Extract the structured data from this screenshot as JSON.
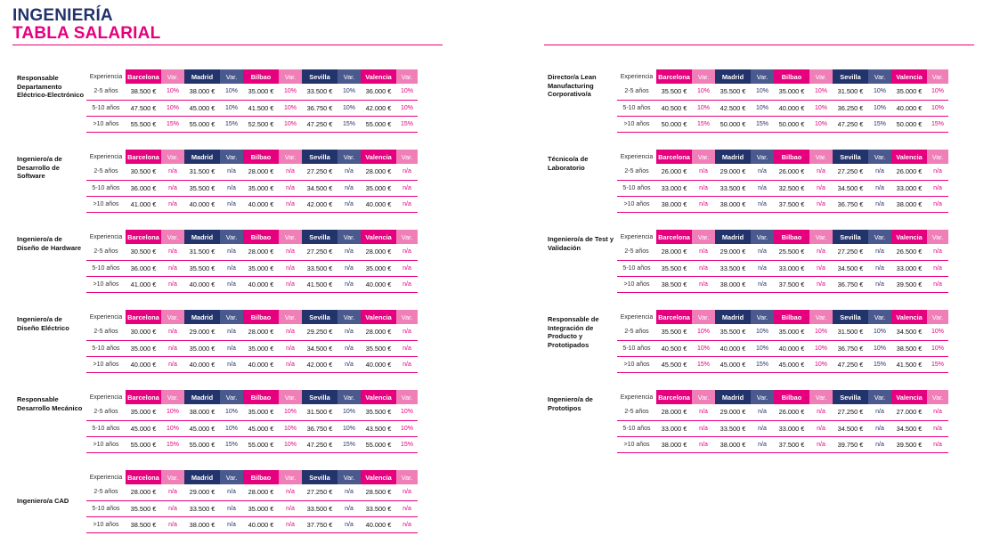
{
  "header": {
    "title_line1": "INGENIERÍA",
    "title_line2": "TABLA SALARIAL"
  },
  "columns": {
    "experience": "Experiencia",
    "cities": [
      "Barcelona",
      "Madrid",
      "Bilbao",
      "Sevilla",
      "Valencia"
    ],
    "var": "Var."
  },
  "left": [
    {
      "role": "Responsable Departamento Eléctrico-Electrónico",
      "rows": [
        {
          "exp": "2-5 años",
          "cells": [
            [
              "38.500 €",
              "10%"
            ],
            [
              "38.000 €",
              "10%"
            ],
            [
              "35.000 €",
              "10%"
            ],
            [
              "33.500 €",
              "10%"
            ],
            [
              "36.000 €",
              "10%"
            ]
          ]
        },
        {
          "exp": "5-10 años",
          "cells": [
            [
              "47.500 €",
              "10%"
            ],
            [
              "45.000 €",
              "10%"
            ],
            [
              "41.500 €",
              "10%"
            ],
            [
              "36.750 €",
              "10%"
            ],
            [
              "42.000 €",
              "10%"
            ]
          ]
        },
        {
          "exp": ">10 años",
          "cells": [
            [
              "55.500 €",
              "15%"
            ],
            [
              "55.000 €",
              "15%"
            ],
            [
              "52.500 €",
              "10%"
            ],
            [
              "47.250 €",
              "15%"
            ],
            [
              "55.000 €",
              "15%"
            ]
          ]
        }
      ]
    },
    {
      "role": "Ingeniero/a de Desarrollo de Software",
      "rows": [
        {
          "exp": "2-5 años",
          "cells": [
            [
              "30.500 €",
              "n/a"
            ],
            [
              "31.500 €",
              "n/a"
            ],
            [
              "28.000 €",
              "n/a"
            ],
            [
              "27.250 €",
              "n/a"
            ],
            [
              "28.000 €",
              "n/a"
            ]
          ]
        },
        {
          "exp": "5-10 años",
          "cells": [
            [
              "36.000 €",
              "n/a"
            ],
            [
              "35.500 €",
              "n/a"
            ],
            [
              "35.000 €",
              "n/a"
            ],
            [
              "34.500 €",
              "n/a"
            ],
            [
              "35.000 €",
              "n/a"
            ]
          ]
        },
        {
          "exp": ">10 años",
          "cells": [
            [
              "41.000 €",
              "n/a"
            ],
            [
              "40.000 €",
              "n/a"
            ],
            [
              "40.000 €",
              "n/a"
            ],
            [
              "42.000 €",
              "n/a"
            ],
            [
              "40.000 €",
              "n/a"
            ]
          ]
        }
      ]
    },
    {
      "role": "Ingeniero/a de Diseño de Hardware",
      "rows": [
        {
          "exp": "2-5 años",
          "cells": [
            [
              "30.500 €",
              "n/a"
            ],
            [
              "31.500 €",
              "n/a"
            ],
            [
              "28.000 €",
              "n/a"
            ],
            [
              "27.250 €",
              "n/a"
            ],
            [
              "28.000 €",
              "n/a"
            ]
          ]
        },
        {
          "exp": "5-10 años",
          "cells": [
            [
              "36.000 €",
              "n/a"
            ],
            [
              "35.500 €",
              "n/a"
            ],
            [
              "35.000 €",
              "n/a"
            ],
            [
              "33.500 €",
              "n/a"
            ],
            [
              "35.000 €",
              "n/a"
            ]
          ]
        },
        {
          "exp": ">10 años",
          "cells": [
            [
              "41.000 €",
              "n/a"
            ],
            [
              "40.000 €",
              "n/a"
            ],
            [
              "40.000 €",
              "n/a"
            ],
            [
              "41.500 €",
              "n/a"
            ],
            [
              "40.000 €",
              "n/a"
            ]
          ]
        }
      ]
    },
    {
      "role": "Ingeniero/a de Diseño Eléctrico",
      "rows": [
        {
          "exp": "2-5 años",
          "cells": [
            [
              "30.000 €",
              "n/a"
            ],
            [
              "29.000 €",
              "n/a"
            ],
            [
              "28.000 €",
              "n/a"
            ],
            [
              "29.250 €",
              "n/a"
            ],
            [
              "28.000 €",
              "n/a"
            ]
          ]
        },
        {
          "exp": "5-10 años",
          "cells": [
            [
              "35.000 €",
              "n/a"
            ],
            [
              "35.000 €",
              "n/a"
            ],
            [
              "35.000 €",
              "n/a"
            ],
            [
              "34.500 €",
              "n/a"
            ],
            [
              "35.500 €",
              "n/a"
            ]
          ]
        },
        {
          "exp": ">10 años",
          "cells": [
            [
              "40.000 €",
              "n/a"
            ],
            [
              "40.000 €",
              "n/a"
            ],
            [
              "40.000 €",
              "n/a"
            ],
            [
              "42.000 €",
              "n/a"
            ],
            [
              "40.000 €",
              "n/a"
            ]
          ]
        }
      ]
    },
    {
      "role": "Responsable Desarrollo Mecánico",
      "rows": [
        {
          "exp": "2-5 años",
          "cells": [
            [
              "35.000 €",
              "10%"
            ],
            [
              "38.000 €",
              "10%"
            ],
            [
              "35.000 €",
              "10%"
            ],
            [
              "31.500 €",
              "10%"
            ],
            [
              "35.500 €",
              "10%"
            ]
          ]
        },
        {
          "exp": "5-10 años",
          "cells": [
            [
              "45.000 €",
              "10%"
            ],
            [
              "45.000 €",
              "10%"
            ],
            [
              "45.000 €",
              "10%"
            ],
            [
              "36.750 €",
              "10%"
            ],
            [
              "43.500 €",
              "10%"
            ]
          ]
        },
        {
          "exp": ">10 años",
          "cells": [
            [
              "55.000 €",
              "15%"
            ],
            [
              "55.000 €",
              "15%"
            ],
            [
              "55.000 €",
              "10%"
            ],
            [
              "47.250 €",
              "15%"
            ],
            [
              "55.000 €",
              "15%"
            ]
          ]
        }
      ]
    },
    {
      "role": "Ingeniero/a CAD",
      "rows": [
        {
          "exp": "2-5 años",
          "cells": [
            [
              "28.000 €",
              "n/a"
            ],
            [
              "29.000 €",
              "n/a"
            ],
            [
              "28.000 €",
              "n/a"
            ],
            [
              "27.250 €",
              "n/a"
            ],
            [
              "28.500 €",
              "n/a"
            ]
          ]
        },
        {
          "exp": "5-10 años",
          "cells": [
            [
              "35.500 €",
              "n/a"
            ],
            [
              "33.500 €",
              "n/a"
            ],
            [
              "35.000 €",
              "n/a"
            ],
            [
              "33.500 €",
              "n/a"
            ],
            [
              "33.500 €",
              "n/a"
            ]
          ]
        },
        {
          "exp": ">10 años",
          "cells": [
            [
              "38.500 €",
              "n/a"
            ],
            [
              "38.000 €",
              "n/a"
            ],
            [
              "40.000 €",
              "n/a"
            ],
            [
              "37.750 €",
              "n/a"
            ],
            [
              "40.000 €",
              "n/a"
            ]
          ]
        }
      ]
    }
  ],
  "right": [
    {
      "role": "Director/a Lean Manufacturing Corporativo/a",
      "rows": [
        {
          "exp": "2-5 años",
          "cells": [
            [
              "35.500 €",
              "10%"
            ],
            [
              "35.500 €",
              "10%"
            ],
            [
              "35.000 €",
              "10%"
            ],
            [
              "31.500 €",
              "10%"
            ],
            [
              "35.000 €",
              "10%"
            ]
          ]
        },
        {
          "exp": "5-10 años",
          "cells": [
            [
              "40.500 €",
              "10%"
            ],
            [
              "42.500 €",
              "10%"
            ],
            [
              "40.000 €",
              "10%"
            ],
            [
              "36.250 €",
              "10%"
            ],
            [
              "40.000 €",
              "10%"
            ]
          ]
        },
        {
          "exp": ">10 años",
          "cells": [
            [
              "50.000 €",
              "15%"
            ],
            [
              "50.000 €",
              "15%"
            ],
            [
              "50.000 €",
              "10%"
            ],
            [
              "47.250 €",
              "15%"
            ],
            [
              "50.000 €",
              "15%"
            ]
          ]
        }
      ]
    },
    {
      "role": "Técnico/a de Laboratorio",
      "rows": [
        {
          "exp": "2-5 años",
          "cells": [
            [
              "26.000 €",
              "n/a"
            ],
            [
              "29.000 €",
              "n/a"
            ],
            [
              "26.000 €",
              "n/a"
            ],
            [
              "27.250 €",
              "n/a"
            ],
            [
              "26.000 €",
              "n/a"
            ]
          ]
        },
        {
          "exp": "5-10 años",
          "cells": [
            [
              "33.000 €",
              "n/a"
            ],
            [
              "33.500 €",
              "n/a"
            ],
            [
              "32.500 €",
              "n/a"
            ],
            [
              "34.500 €",
              "n/a"
            ],
            [
              "33.000 €",
              "n/a"
            ]
          ]
        },
        {
          "exp": ">10 años",
          "cells": [
            [
              "38.000 €",
              "n/a"
            ],
            [
              "38.000 €",
              "n/a"
            ],
            [
              "37.500 €",
              "n/a"
            ],
            [
              "36.750 €",
              "n/a"
            ],
            [
              "38.000 €",
              "n/a"
            ]
          ]
        }
      ]
    },
    {
      "role": "Ingeniero/a de Test y Validación",
      "rows": [
        {
          "exp": "2-5 años",
          "cells": [
            [
              "28.000 €",
              "n/a"
            ],
            [
              "29.000 €",
              "n/a"
            ],
            [
              "25.500 €",
              "n/a"
            ],
            [
              "27.250 €",
              "n/a"
            ],
            [
              "26.500 €",
              "n/a"
            ]
          ]
        },
        {
          "exp": "5-10 años",
          "cells": [
            [
              "35.500 €",
              "n/a"
            ],
            [
              "33.500 €",
              "n/a"
            ],
            [
              "33.000 €",
              "n/a"
            ],
            [
              "34.500 €",
              "n/a"
            ],
            [
              "33.000 €",
              "n/a"
            ]
          ]
        },
        {
          "exp": ">10 años",
          "cells": [
            [
              "38.500 €",
              "n/a"
            ],
            [
              "38.000 €",
              "n/a"
            ],
            [
              "37.500 €",
              "n/a"
            ],
            [
              "36.750 €",
              "n/a"
            ],
            [
              "39.500 €",
              "n/a"
            ]
          ]
        }
      ]
    },
    {
      "role": "Responsable de Integración de Producto y Prototipados",
      "rows": [
        {
          "exp": "2-5 años",
          "cells": [
            [
              "35.500 €",
              "10%"
            ],
            [
              "35.500 €",
              "10%"
            ],
            [
              "35.000 €",
              "10%"
            ],
            [
              "31.500 €",
              "10%"
            ],
            [
              "34.500 €",
              "10%"
            ]
          ]
        },
        {
          "exp": "5-10 años",
          "cells": [
            [
              "40.500 €",
              "10%"
            ],
            [
              "40.000 €",
              "10%"
            ],
            [
              "40.000 €",
              "10%"
            ],
            [
              "36.750 €",
              "10%"
            ],
            [
              "38.500 €",
              "10%"
            ]
          ]
        },
        {
          "exp": ">10 años",
          "cells": [
            [
              "45.500 €",
              "15%"
            ],
            [
              "45.000 €",
              "15%"
            ],
            [
              "45.000 €",
              "10%"
            ],
            [
              "47.250 €",
              "15%"
            ],
            [
              "41.500 €",
              "15%"
            ]
          ]
        }
      ]
    },
    {
      "role": "Ingeniero/a de Prototipos",
      "rows": [
        {
          "exp": "2-5 años",
          "cells": [
            [
              "28.000 €",
              "n/a"
            ],
            [
              "29.000 €",
              "n/a"
            ],
            [
              "26.000 €",
              "n/a"
            ],
            [
              "27.250 €",
              "n/a"
            ],
            [
              "27.000 €",
              "n/a"
            ]
          ]
        },
        {
          "exp": "5-10 años",
          "cells": [
            [
              "33.000 €",
              "n/a"
            ],
            [
              "33.500 €",
              "n/a"
            ],
            [
              "33.000 €",
              "n/a"
            ],
            [
              "34.500 €",
              "n/a"
            ],
            [
              "34.500 €",
              "n/a"
            ]
          ]
        },
        {
          "exp": ">10 años",
          "cells": [
            [
              "38.000 €",
              "n/a"
            ],
            [
              "38.000 €",
              "n/a"
            ],
            [
              "37.500 €",
              "n/a"
            ],
            [
              "39.750 €",
              "n/a"
            ],
            [
              "39.500 €",
              "n/a"
            ]
          ]
        }
      ]
    }
  ]
}
